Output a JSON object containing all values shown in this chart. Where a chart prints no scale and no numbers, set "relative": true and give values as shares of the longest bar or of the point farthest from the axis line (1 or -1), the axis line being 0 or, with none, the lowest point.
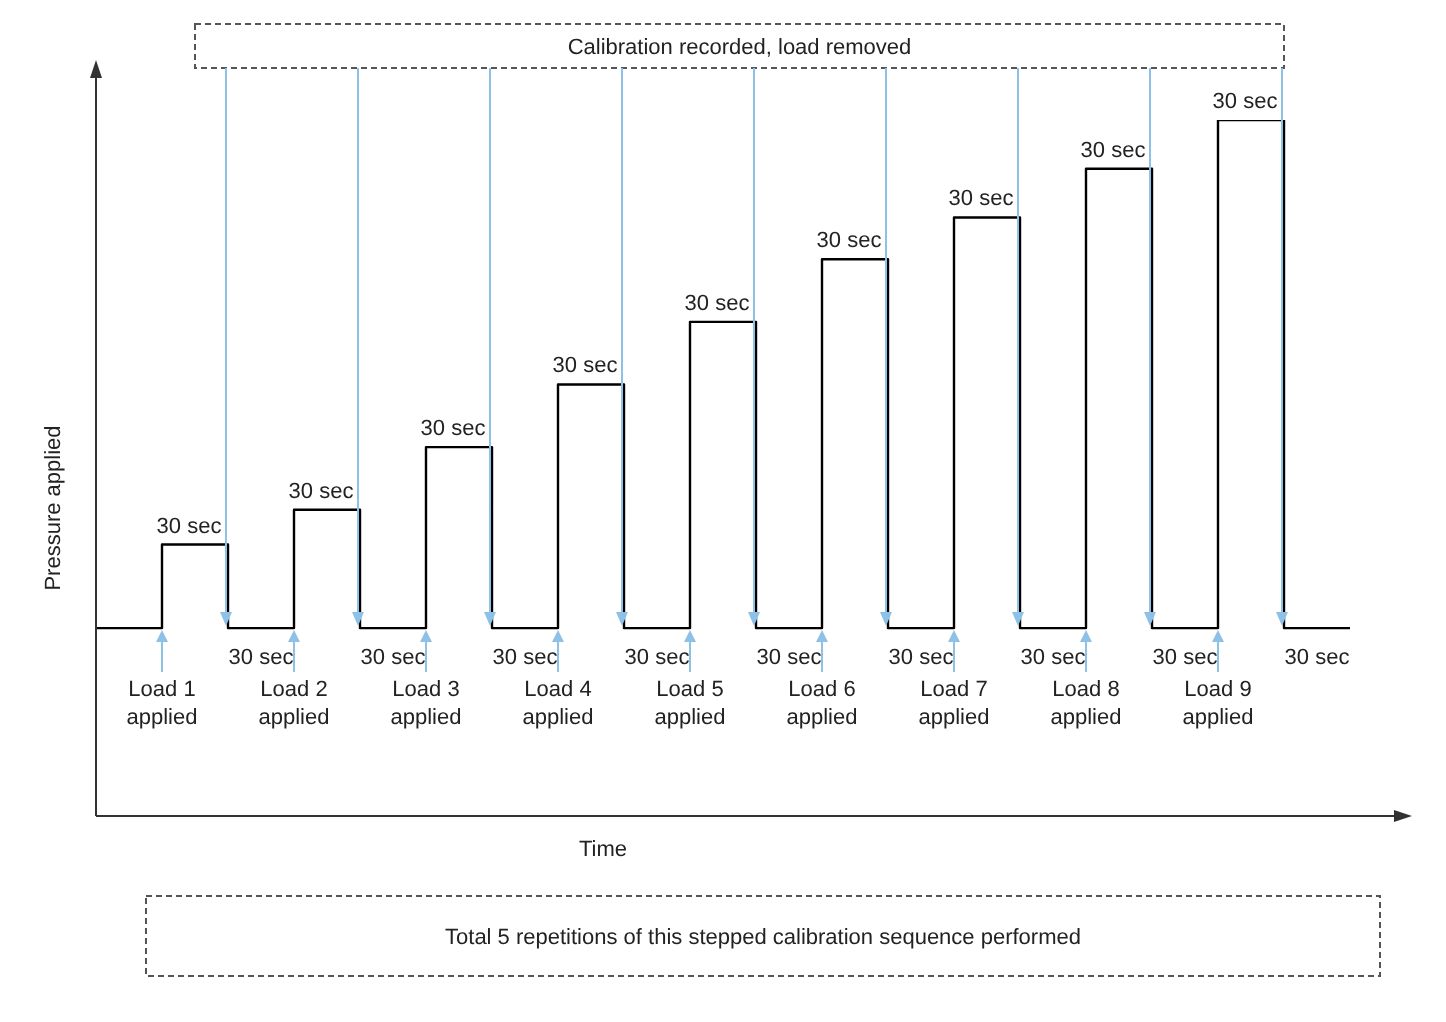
{
  "chart_data": {
    "type": "step",
    "relative": true,
    "xlabel": "Time",
    "ylabel": "Pressure applied",
    "color": "#000000",
    "categories": [
      null,
      null,
      null,
      null,
      null,
      null,
      null,
      null,
      null,
      null,
      null,
      null,
      null,
      null,
      null,
      null,
      null,
      null,
      null,
      null
    ],
    "values": [
      0.27,
      0.39,
      0.27,
      0.44,
      0.27,
      0.53,
      0.27,
      0.62,
      0.27,
      0.71,
      0.27,
      0.8,
      0.27,
      0.86,
      0.27,
      0.93,
      0.27,
      1,
      0.27,
      0.27
    ],
    "annotations": [
      "Calibration recorded, load removed",
      "Load 1 applied",
      "30 sec",
      "30 sec",
      "Load 2 applied",
      "30 sec",
      "30 sec",
      "Load 3 applied",
      "30 sec",
      "30 sec",
      "Load 4 applied",
      "30 sec",
      "30 sec",
      "Load 5 applied",
      "30 sec",
      "30 sec",
      "Load 6 applied",
      "30 sec",
      "30 sec",
      "Load 7 applied",
      "30 sec",
      "30 sec",
      "Load 8 applied",
      "30 sec",
      "30 sec",
      "Load 9 applied",
      "30 sec",
      "30 sec",
      "Total 5 repetitions of this stepped calibration sequence performed"
    ]
  }
}
